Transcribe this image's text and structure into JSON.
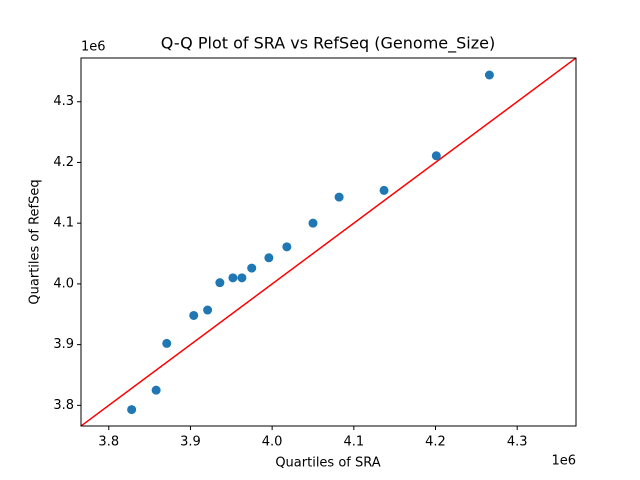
{
  "chart_data": {
    "type": "scatter",
    "title": "Q-Q Plot of SRA vs RefSeq (Genome_Size)",
    "x_label": "Quartiles of SRA",
    "y_label": "Quartiles of RefSeq",
    "x_offset_label": "1e6",
    "y_offset_label": "1e6",
    "x": [
      3.828,
      3.858,
      3.871,
      3.904,
      3.921,
      3.936,
      3.952,
      3.963,
      3.975,
      3.996,
      4.018,
      4.05,
      4.082,
      4.137,
      4.201,
      4.266
    ],
    "series": [
      {
        "color": "#1f77b4",
        "values": [
          3.793,
          3.825,
          3.902,
          3.948,
          3.957,
          4.002,
          4.01,
          4.01,
          4.026,
          4.043,
          4.061,
          4.1,
          4.143,
          4.154,
          4.211,
          4.344
        ]
      }
    ],
    "line_color": "#ff0000",
    "xlim": [
      3.766,
      4.372
    ],
    "ylim": [
      3.766,
      4.372
    ],
    "xticks": [
      3.8,
      3.9,
      {
        "value": 4.0,
        "label": "4.0"
      },
      4.1,
      4.2,
      4.3
    ],
    "yticks": [
      3.8,
      3.9,
      {
        "value": 4.0,
        "label": "4.0"
      },
      4.1,
      4.2,
      4.3
    ],
    "grid": false
  }
}
